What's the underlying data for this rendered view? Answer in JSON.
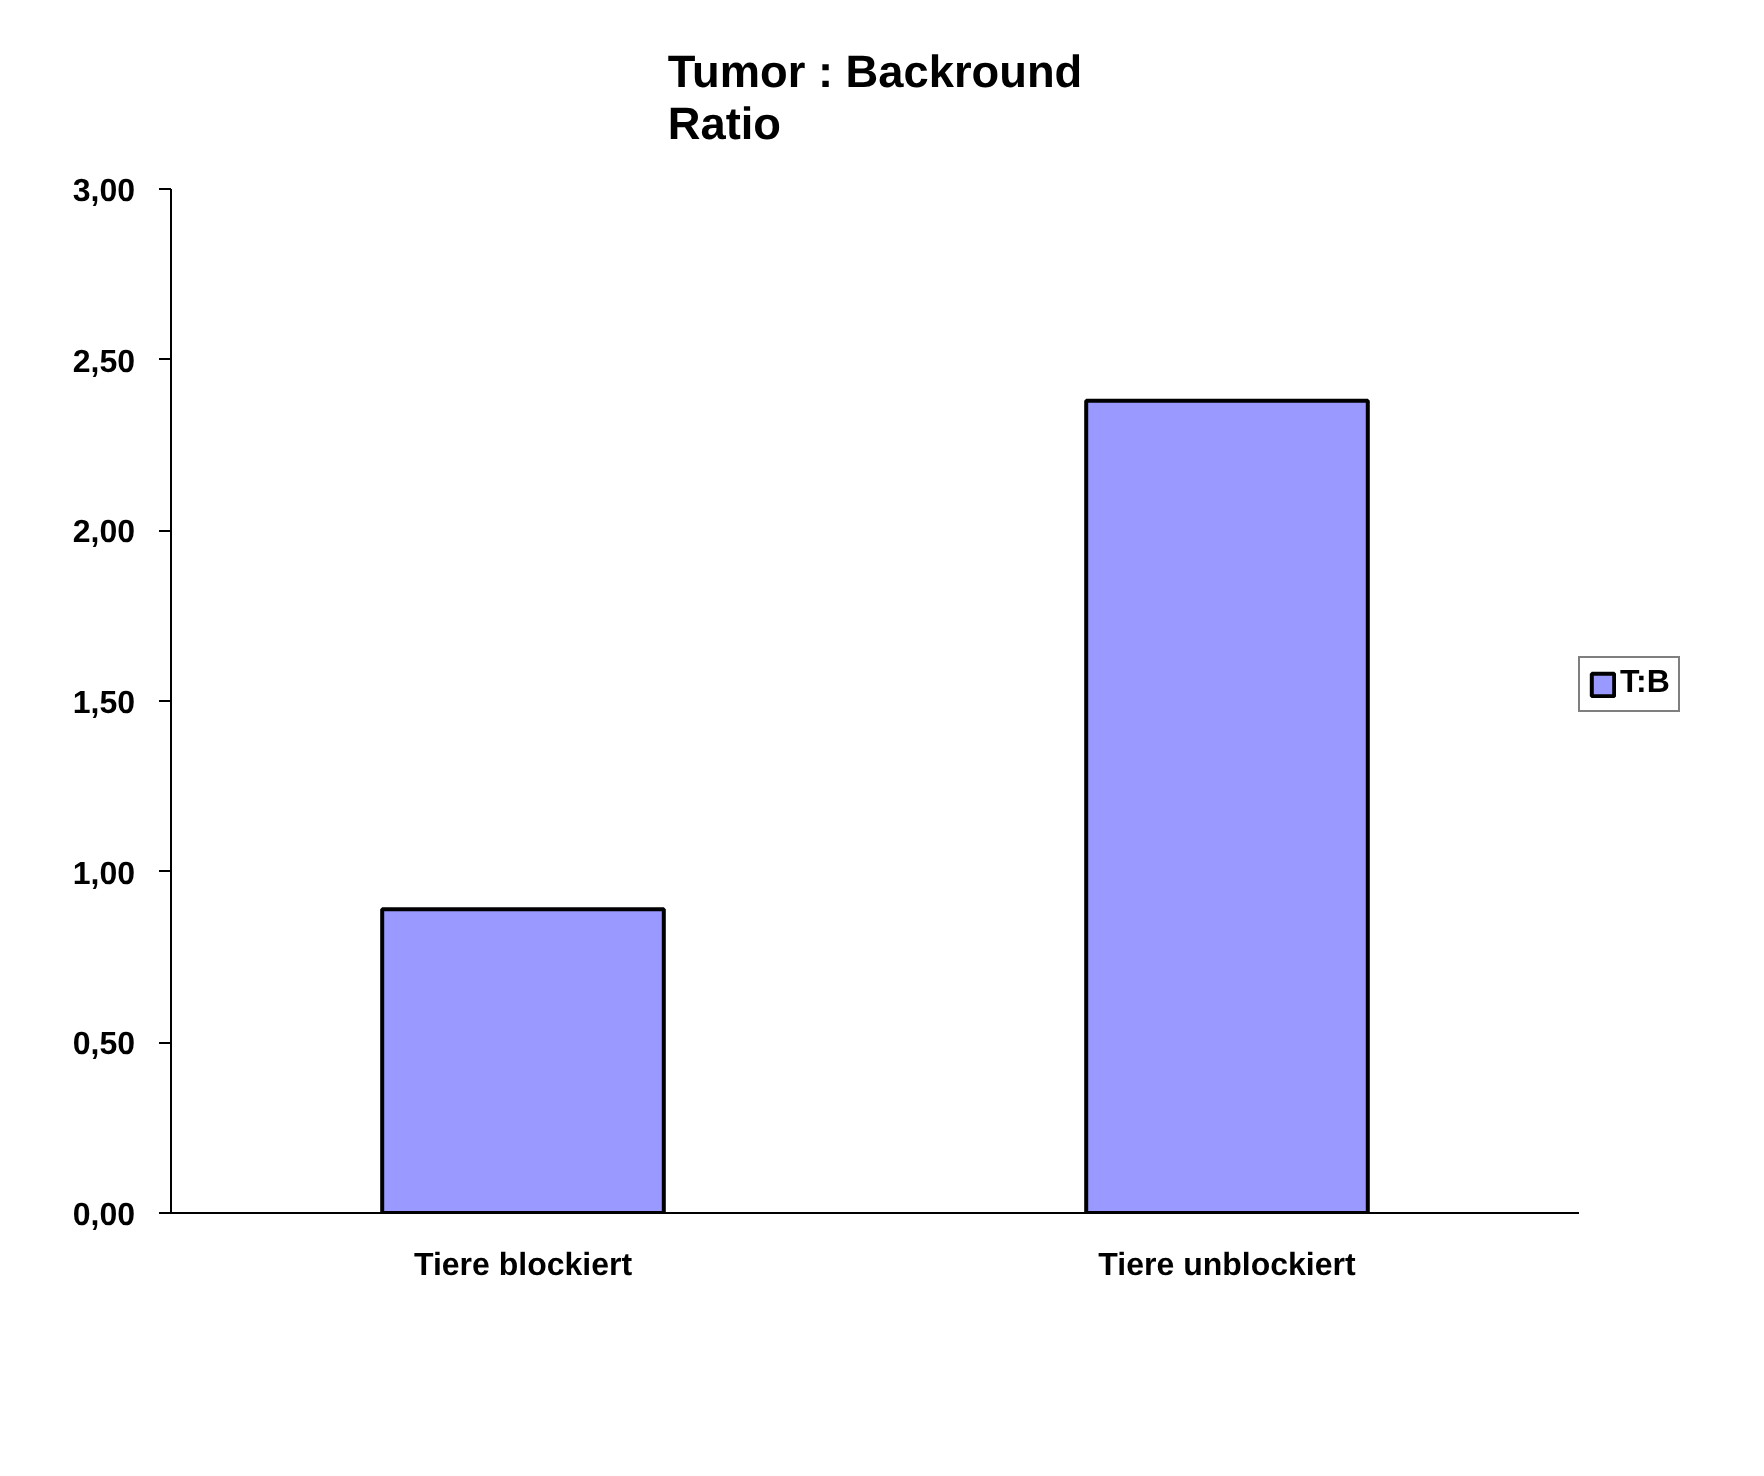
{
  "chart_data": {
    "type": "bar",
    "title": "Tumor : Backround\nRatio",
    "categories": [
      "Tiere blockiert",
      "Tiere unblockiert"
    ],
    "series": [
      {
        "name": "T:B",
        "color": "#9999ff",
        "values": [
          0.89,
          2.38
        ]
      }
    ],
    "ylim": [
      0,
      3
    ],
    "yticks": [
      {
        "value": 0,
        "label": "0,00"
      },
      {
        "value": 0.5,
        "label": "0,50"
      },
      {
        "value": 1,
        "label": "1,00"
      },
      {
        "value": 1.5,
        "label": "1,50"
      },
      {
        "value": 2,
        "label": "2,00"
      },
      {
        "value": 2.5,
        "label": "2,50"
      },
      {
        "value": 3,
        "label": "3,00"
      }
    ],
    "grid": false,
    "legend": "right"
  }
}
